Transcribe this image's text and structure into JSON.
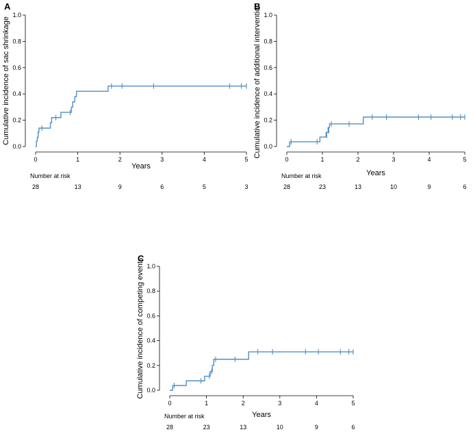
{
  "chart_data": [
    {
      "panel": "A",
      "type": "line",
      "subtype": "step",
      "ylabel": "Cumulative incidence of sac shrinkage",
      "xlabel": "Years",
      "xlim": [
        0,
        5
      ],
      "ylim": [
        0,
        1.0
      ],
      "xticks": [
        "0",
        "1",
        "2",
        "3",
        "4",
        "5"
      ],
      "yticks": [
        "0.0",
        "0.2",
        "0.4",
        "0.6",
        "0.8",
        "1.0"
      ],
      "steps": [
        [
          0,
          0.0
        ],
        [
          0.02,
          0.04
        ],
        [
          0.04,
          0.07
        ],
        [
          0.06,
          0.11
        ],
        [
          0.08,
          0.14
        ],
        [
          0.35,
          0.18
        ],
        [
          0.38,
          0.22
        ],
        [
          0.55,
          0.22
        ],
        [
          0.6,
          0.26
        ],
        [
          0.85,
          0.3
        ],
        [
          0.88,
          0.34
        ],
        [
          0.93,
          0.38
        ],
        [
          0.97,
          0.42
        ],
        [
          1.72,
          0.46
        ],
        [
          5.0,
          0.46
        ]
      ],
      "censored": [
        [
          0.15,
          0.14
        ],
        [
          0.48,
          0.22
        ],
        [
          0.82,
          0.26
        ],
        [
          1.8,
          0.46
        ],
        [
          2.05,
          0.46
        ],
        [
          2.8,
          0.46
        ],
        [
          4.6,
          0.46
        ],
        [
          4.88,
          0.46
        ],
        [
          5.0,
          0.46
        ]
      ],
      "risk_title": "Number at risk",
      "risk_values": [
        "28",
        "13",
        "9",
        "6",
        "5",
        "3"
      ]
    },
    {
      "panel": "B",
      "type": "line",
      "subtype": "step",
      "ylabel": "Cumulative incidence of additional intervention",
      "xlabel": "Years",
      "xlim": [
        0,
        5
      ],
      "ylim": [
        0,
        1.0
      ],
      "xticks": [
        "0",
        "1",
        "2",
        "3",
        "4",
        "5"
      ],
      "yticks": [
        "0.0",
        "0.2",
        "0.4",
        "0.6",
        "0.8",
        "1.0"
      ],
      "steps": [
        [
          0,
          0.0
        ],
        [
          0.08,
          0.036
        ],
        [
          0.88,
          0.036
        ],
        [
          0.93,
          0.072
        ],
        [
          1.08,
          0.072
        ],
        [
          1.12,
          0.108
        ],
        [
          1.16,
          0.144
        ],
        [
          1.2,
          0.172
        ],
        [
          2.15,
          0.224
        ],
        [
          5.0,
          0.224
        ]
      ],
      "censored": [
        [
          0.12,
          0.036
        ],
        [
          0.85,
          0.036
        ],
        [
          1.1,
          0.09
        ],
        [
          1.18,
          0.12
        ],
        [
          1.25,
          0.172
        ],
        [
          1.75,
          0.172
        ],
        [
          2.4,
          0.224
        ],
        [
          2.8,
          0.224
        ],
        [
          3.7,
          0.224
        ],
        [
          4.05,
          0.224
        ],
        [
          4.65,
          0.224
        ],
        [
          4.88,
          0.224
        ],
        [
          5.0,
          0.224
        ]
      ],
      "risk_title": "Number at risk",
      "risk_values": [
        "28",
        "23",
        "13",
        "10",
        "9",
        "6"
      ]
    },
    {
      "panel": "C",
      "type": "line",
      "subtype": "step",
      "ylabel": "Cumulative incidence of competing events",
      "xlabel": "Years",
      "xlim": [
        0,
        5
      ],
      "ylim": [
        0,
        1.0
      ],
      "xticks": [
        "0",
        "1",
        "2",
        "3",
        "4",
        "5"
      ],
      "yticks": [
        "0.0",
        "0.2",
        "0.4",
        "0.6",
        "0.8",
        "1.0"
      ],
      "steps": [
        [
          0,
          0.0
        ],
        [
          0.08,
          0.038
        ],
        [
          0.45,
          0.076
        ],
        [
          0.95,
          0.113
        ],
        [
          1.1,
          0.151
        ],
        [
          1.16,
          0.2
        ],
        [
          1.2,
          0.25
        ],
        [
          2.15,
          0.31
        ],
        [
          5.0,
          0.31
        ]
      ],
      "censored": [
        [
          0.12,
          0.038
        ],
        [
          0.85,
          0.076
        ],
        [
          1.08,
          0.113
        ],
        [
          1.14,
          0.151
        ],
        [
          1.25,
          0.25
        ],
        [
          1.78,
          0.25
        ],
        [
          2.4,
          0.31
        ],
        [
          2.8,
          0.31
        ],
        [
          3.7,
          0.31
        ],
        [
          4.05,
          0.31
        ],
        [
          4.65,
          0.31
        ],
        [
          4.88,
          0.31
        ],
        [
          5.0,
          0.31
        ]
      ],
      "risk_title": "Number at risk",
      "risk_values": [
        "28",
        "23",
        "13",
        "10",
        "9",
        "6"
      ]
    }
  ]
}
